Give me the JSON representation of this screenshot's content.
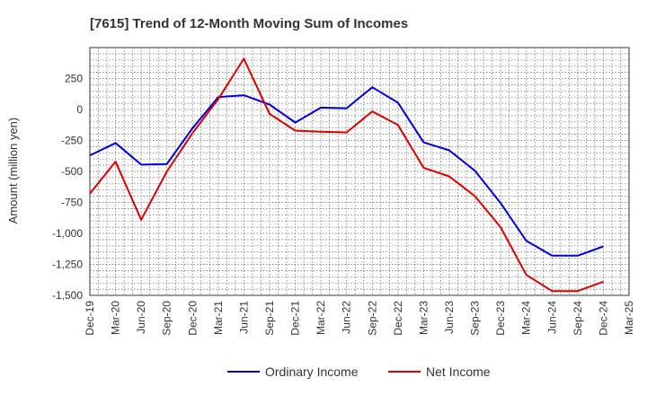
{
  "chart_data": {
    "type": "line",
    "title": "[7615]  Trend of 12-Month Moving Sum of Incomes",
    "xlabel": "",
    "ylabel": "Amount (million yen)",
    "ylim": [
      -1500,
      500
    ],
    "yticks": [
      250,
      0,
      -250,
      -500,
      -750,
      -1000,
      -1250,
      -1500
    ],
    "ytick_labels": [
      "250",
      "0",
      "-250",
      "-500",
      "-750",
      "-1,000",
      "-1,250",
      "-1,500"
    ],
    "categories": [
      "Dec-19",
      "Mar-20",
      "Jun-20",
      "Sep-20",
      "Dec-20",
      "Mar-21",
      "Jun-21",
      "Sep-21",
      "Dec-21",
      "Mar-22",
      "Jun-22",
      "Sep-22",
      "Dec-22",
      "Mar-23",
      "Jun-23",
      "Sep-23",
      "Dec-23",
      "Mar-24",
      "Jun-24",
      "Sep-24",
      "Dec-24",
      "Mar-25"
    ],
    "grid": true,
    "legend_position": "bottom-center",
    "series": [
      {
        "name": "Ordinary Income",
        "color": "#0000dd",
        "values": [
          -370,
          -270,
          -445,
          -440,
          -150,
          100,
          115,
          40,
          -105,
          15,
          10,
          180,
          55,
          -265,
          -330,
          -495,
          -755,
          -1060,
          -1180,
          -1180,
          -1105,
          null
        ]
      },
      {
        "name": "Net Income",
        "color": "#dd0000",
        "values": [
          -680,
          -420,
          -890,
          -500,
          -190,
          85,
          410,
          -35,
          -170,
          -180,
          -185,
          -15,
          -125,
          -470,
          -540,
          -700,
          -950,
          -1335,
          -1465,
          -1465,
          -1390,
          null
        ]
      }
    ]
  }
}
